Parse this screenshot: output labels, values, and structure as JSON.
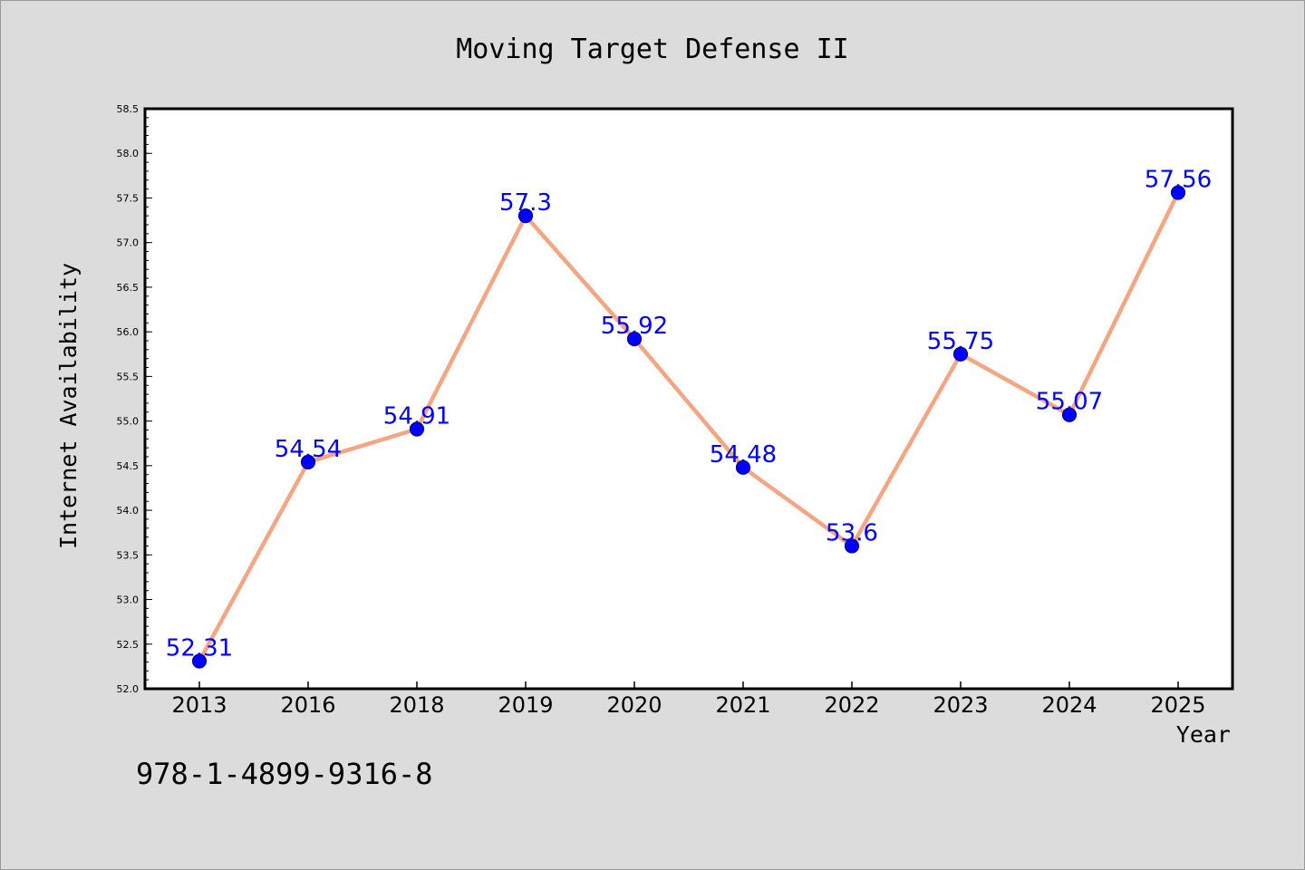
{
  "chart_data": {
    "type": "line",
    "title": "Moving Target Defense II",
    "xlabel": "Year",
    "ylabel": "Internet Availability",
    "categories": [
      "2013",
      "2016",
      "2018",
      "2019",
      "2020",
      "2021",
      "2022",
      "2023",
      "2024",
      "2025"
    ],
    "series": [
      {
        "values": [
          52.31,
          54.54,
          54.91,
          57.3,
          55.92,
          54.48,
          53.6,
          55.75,
          55.07,
          57.56
        ],
        "labels": [
          "52.31",
          "54.54",
          "54.91",
          "57.3",
          "55.92",
          "54.48",
          "53.6",
          "55.75",
          "55.07",
          "57.56"
        ]
      }
    ],
    "ylim": [
      52.0,
      58.5
    ],
    "yticks": [
      "52.0",
      "52.5",
      "53.0",
      "53.5",
      "54.0",
      "54.5",
      "55.0",
      "55.5",
      "56.0",
      "56.5",
      "57.0",
      "57.5",
      "58.0",
      "58.5"
    ],
    "grid": false,
    "line_color": "#f4a582",
    "marker_color": "#0000ff",
    "label_color": "#0000ff"
  },
  "footer_text": "978-1-4899-9316-8"
}
